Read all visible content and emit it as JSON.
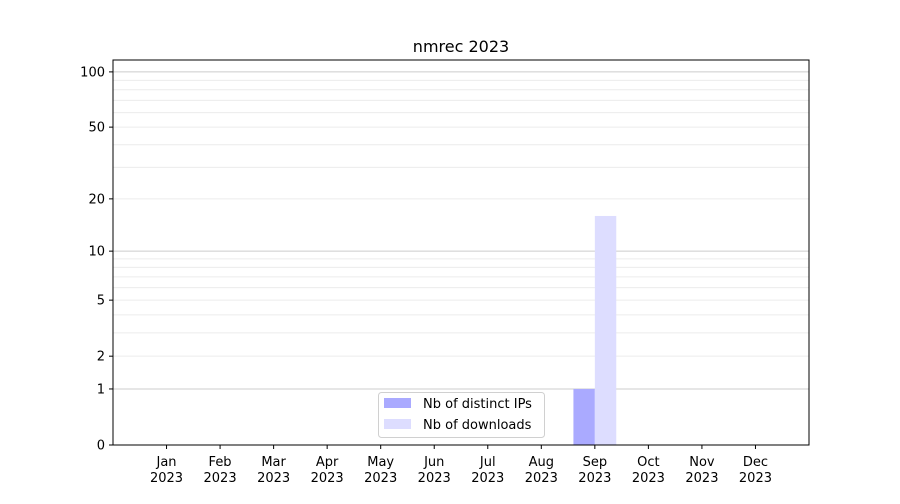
{
  "chart_data": {
    "type": "bar",
    "title": "nmrec 2023",
    "xlabel": "",
    "ylabel": "",
    "categories": [
      "Jan\n2023",
      "Feb\n2023",
      "Mar\n2023",
      "Apr\n2023",
      "May\n2023",
      "Jun\n2023",
      "Jul\n2023",
      "Aug\n2023",
      "Sep\n2023",
      "Oct\n2023",
      "Nov\n2023",
      "Dec\n2023"
    ],
    "series": [
      {
        "name": "Nb of distinct IPs",
        "color": "#aaaaff",
        "values": [
          0,
          0,
          0,
          0,
          0,
          0,
          0,
          0,
          1,
          0,
          0,
          0
        ]
      },
      {
        "name": "Nb of downloads",
        "color": "#ddddff",
        "values": [
          0,
          0,
          0,
          0,
          0,
          0,
          0,
          0,
          16,
          0,
          0,
          0
        ]
      }
    ],
    "yscale": "symlog",
    "ylim": [
      0,
      116
    ],
    "yticks": [
      0,
      1,
      2,
      5,
      10,
      20,
      50,
      100
    ],
    "grid": true,
    "legend": "bottom-center"
  }
}
